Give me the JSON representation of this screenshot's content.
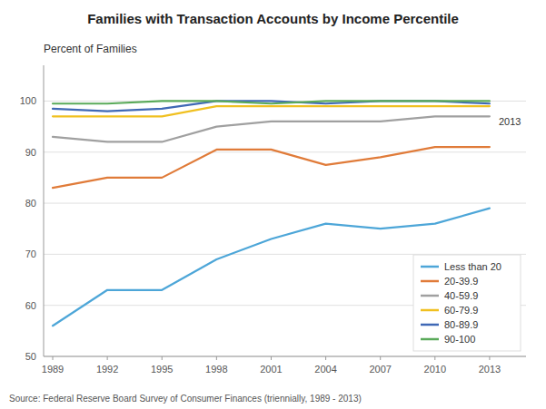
{
  "chart_data": {
    "type": "line",
    "title": "Families with Transaction  Accounts by Income Percentile",
    "ylabel": "Percent of Families",
    "source": "Source: Federal Reserve Board Survey of Consumer Finances (triennially, 1989 - 2013)",
    "x": [
      1989,
      1992,
      1995,
      1998,
      2001,
      2004,
      2007,
      2010,
      2013
    ],
    "series": [
      {
        "name": "Less than 20",
        "color": "#4da6d8",
        "values": [
          56,
          63,
          63,
          69,
          73,
          76,
          75,
          76,
          79
        ]
      },
      {
        "name": "20-39.9",
        "color": "#e07b39",
        "values": [
          83,
          85,
          85,
          90.5,
          90.5,
          87.5,
          89,
          91,
          91
        ]
      },
      {
        "name": "40-59.9",
        "color": "#a0a0a0",
        "values": [
          93,
          92,
          92,
          95,
          96,
          96,
          96,
          97,
          97
        ]
      },
      {
        "name": "60-79.9",
        "color": "#f0c020",
        "values": [
          97,
          97,
          97,
          99,
          99,
          99,
          99,
          99,
          99
        ]
      },
      {
        "name": "80-89.9",
        "color": "#3f68b5",
        "values": [
          98.5,
          98,
          98.5,
          100,
          100,
          99.5,
          100,
          100,
          99.5
        ]
      },
      {
        "name": "90-100",
        "color": "#5aaa5a",
        "values": [
          99.5,
          99.5,
          100,
          100,
          99.5,
          100,
          100,
          100,
          100
        ]
      }
    ],
    "annotations": [
      {
        "text": "2013",
        "x": 2013.5,
        "y": 96.0
      }
    ],
    "xlim": [
      1988.5,
      2015.0
    ],
    "ylim": [
      50,
      107
    ],
    "xticks": [
      1989,
      1992,
      1995,
      1998,
      2001,
      2004,
      2007,
      2010,
      2013
    ],
    "yticks": [
      50,
      60,
      70,
      80,
      90,
      100
    ],
    "grid": true,
    "legend": "lower right"
  }
}
